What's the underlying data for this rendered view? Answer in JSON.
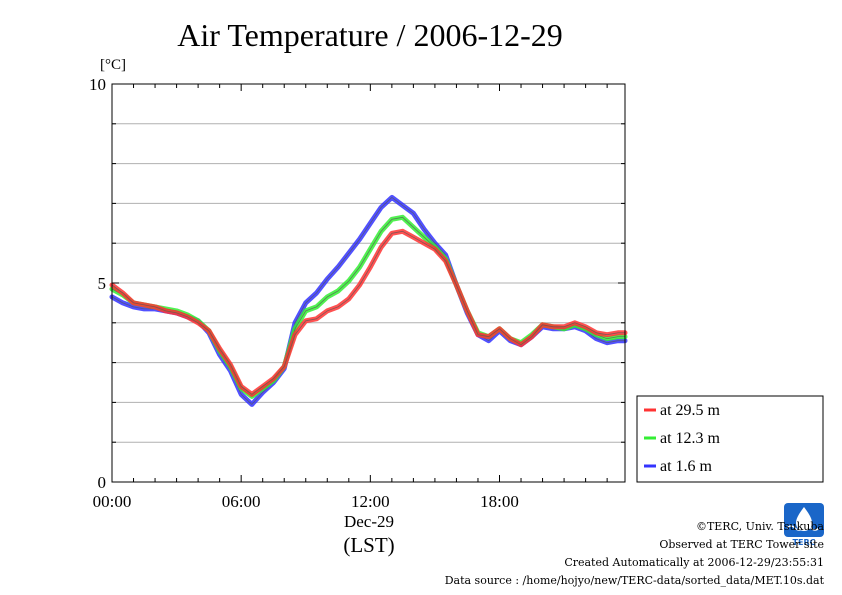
{
  "chart_data": {
    "type": "line",
    "title": "Air Temperature / 2006-12-29",
    "ylabel": "[°C]",
    "ylim": [
      0,
      10
    ],
    "yticks": [
      "0",
      "5",
      "10"
    ],
    "xlim": [
      0,
      23.83
    ],
    "xticks": [
      {
        "value": 0,
        "label": "00:00"
      },
      {
        "value": 6,
        "label": "06:00"
      },
      {
        "value": 12,
        "label": "12:00"
      },
      {
        "value": 18,
        "label": "18:00"
      }
    ],
    "xlabel_date": "Dec-29",
    "xlabel_tz": "(LST)",
    "grid": true,
    "legend": "right",
    "x": [
      0,
      0.5,
      1,
      1.5,
      2,
      2.5,
      3,
      3.5,
      4,
      4.5,
      5,
      5.5,
      6,
      6.5,
      7,
      7.5,
      8,
      8.5,
      9,
      9.5,
      10,
      10.5,
      11,
      11.5,
      12,
      12.5,
      13,
      13.5,
      14,
      14.5,
      15,
      15.5,
      16,
      16.5,
      17,
      17.5,
      18,
      18.5,
      19,
      19.5,
      20,
      20.5,
      21,
      21.5,
      22,
      22.5,
      23,
      23.5,
      23.83
    ],
    "series": [
      {
        "name": "at 29.5 m",
        "color": "#ff3333",
        "values": [
          4.95,
          4.75,
          4.5,
          4.45,
          4.4,
          4.3,
          4.25,
          4.15,
          4.0,
          3.8,
          3.35,
          2.95,
          2.4,
          2.2,
          2.4,
          2.6,
          2.9,
          3.7,
          4.05,
          4.1,
          4.3,
          4.4,
          4.6,
          4.95,
          5.4,
          5.9,
          6.25,
          6.3,
          6.15,
          6.0,
          5.85,
          5.55,
          4.95,
          4.3,
          3.7,
          3.65,
          3.85,
          3.6,
          3.45,
          3.65,
          3.95,
          3.9,
          3.9,
          4.0,
          3.9,
          3.75,
          3.7,
          3.75,
          3.75
        ]
      },
      {
        "name": "at 12.3 m",
        "color": "#33ee33",
        "values": [
          4.85,
          4.7,
          4.5,
          4.45,
          4.4,
          4.35,
          4.3,
          4.2,
          4.05,
          3.8,
          3.3,
          2.9,
          2.35,
          2.15,
          2.35,
          2.55,
          2.9,
          3.85,
          4.3,
          4.4,
          4.65,
          4.8,
          5.05,
          5.4,
          5.85,
          6.3,
          6.6,
          6.65,
          6.4,
          6.15,
          5.9,
          5.6,
          4.95,
          4.3,
          3.75,
          3.65,
          3.85,
          3.6,
          3.5,
          3.7,
          3.95,
          3.9,
          3.85,
          3.95,
          3.85,
          3.7,
          3.6,
          3.65,
          3.65
        ]
      },
      {
        "name": "at 1.6 m",
        "color": "#3333ff",
        "values": [
          4.65,
          4.5,
          4.4,
          4.35,
          4.35,
          4.3,
          4.25,
          4.15,
          4.05,
          3.75,
          3.2,
          2.8,
          2.2,
          1.95,
          2.25,
          2.5,
          2.85,
          4.0,
          4.5,
          4.75,
          5.1,
          5.4,
          5.75,
          6.1,
          6.5,
          6.9,
          7.15,
          6.95,
          6.75,
          6.35,
          6.0,
          5.7,
          4.95,
          4.25,
          3.7,
          3.55,
          3.8,
          3.55,
          3.45,
          3.65,
          3.9,
          3.85,
          3.85,
          3.9,
          3.8,
          3.6,
          3.5,
          3.55,
          3.55
        ]
      }
    ]
  },
  "footer": {
    "copyright": "©TERC, Univ. Tsukuba",
    "observed": "Observed at TERC Tower site",
    "created": "Created Automatically at 2006-12-29/23:55:31",
    "source": "Data source : /home/hojyo/new/TERC-data/sorted_data/MET.10s.dat"
  },
  "logo": {
    "text": "TERC",
    "color": "#1a66c8"
  }
}
